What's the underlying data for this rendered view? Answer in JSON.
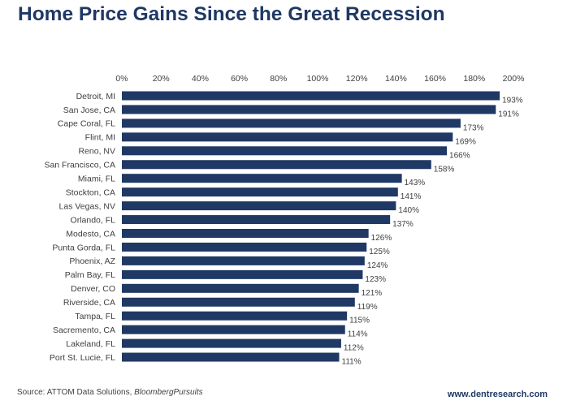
{
  "page": {
    "title": "Home Price Gains Since the Great Recession",
    "source_prefix": "Source: ATTOM Data Solutions, ",
    "source_italic": "BloombergPursuits",
    "website": "www.dentresearch.com"
  },
  "colors": {
    "bar": "#203864",
    "title": "#1f3864",
    "text": "#404040"
  },
  "chart_data": {
    "type": "bar",
    "orientation": "horizontal",
    "categories": [
      "Detroit, MI",
      "San Jose, CA",
      "Cape Coral, FL",
      "Flint, MI",
      "Reno, NV",
      "San Francisco, CA",
      "Miami, FL",
      "Stockton, CA",
      "Las Vegas, NV",
      "Orlando, FL",
      "Modesto, CA",
      "Punta Gorda, FL",
      "Phoenix, AZ",
      "Palm Bay, FL",
      "Denver, CO",
      "Riverside, CA",
      "Tampa, FL",
      "Sacremento, CA",
      "Lakeland, FL",
      "Port St. Lucie, FL"
    ],
    "values": [
      193,
      191,
      173,
      169,
      166,
      158,
      143,
      141,
      140,
      137,
      126,
      125,
      124,
      123,
      121,
      119,
      115,
      114,
      112,
      111
    ],
    "value_labels": [
      "193%",
      "191%",
      "173%",
      "169%",
      "166%",
      "158%",
      "143%",
      "141%",
      "140%",
      "137%",
      "126%",
      "125%",
      "124%",
      "123%",
      "121%",
      "119%",
      "115%",
      "114%",
      "112%",
      "111%"
    ],
    "xlim": [
      0,
      200
    ],
    "xticks": [
      0,
      20,
      40,
      60,
      80,
      100,
      120,
      140,
      160,
      180,
      200
    ],
    "xtick_labels": [
      "0%",
      "20%",
      "40%",
      "60%",
      "80%",
      "100%",
      "120%",
      "140%",
      "160%",
      "180%",
      "200%"
    ],
    "x_axis_position": "top",
    "grid": false,
    "legend": "none"
  }
}
